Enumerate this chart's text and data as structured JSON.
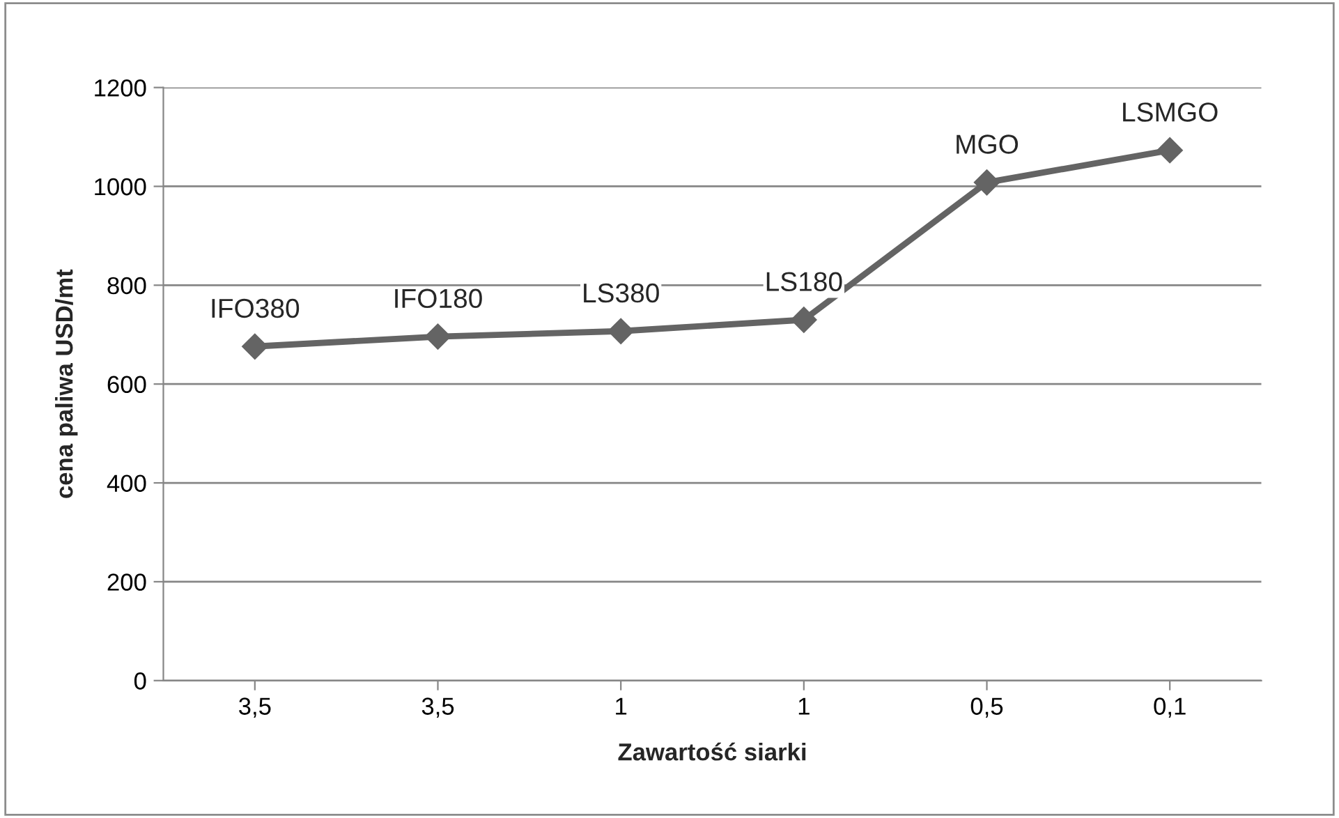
{
  "chart_data": {
    "type": "line",
    "xlabel": "Zawartość siarki",
    "ylabel": "cena paliwa USD/mt",
    "categories": [
      "3,5",
      "3,5",
      "1",
      "1",
      "0,5",
      "0,1"
    ],
    "series": [
      {
        "color": "#646464",
        "values": [
          676,
          696,
          707,
          730,
          1008,
          1073
        ]
      }
    ],
    "ylim": [
      0,
      1200
    ],
    "yticks": [
      0,
      200,
      400,
      600,
      800,
      1000,
      1200
    ],
    "grid": "y",
    "marker": "diamond",
    "line_style": "solid",
    "annotations": [
      {
        "text": "IFO380",
        "y": 676
      },
      {
        "text": "IFO180",
        "y": 696
      },
      {
        "text": "LS380",
        "y": 707
      },
      {
        "text": "LS180",
        "y": 730
      },
      {
        "text": "MGO",
        "y": 1008
      },
      {
        "text": "LSMGO",
        "y": 1073
      }
    ]
  }
}
